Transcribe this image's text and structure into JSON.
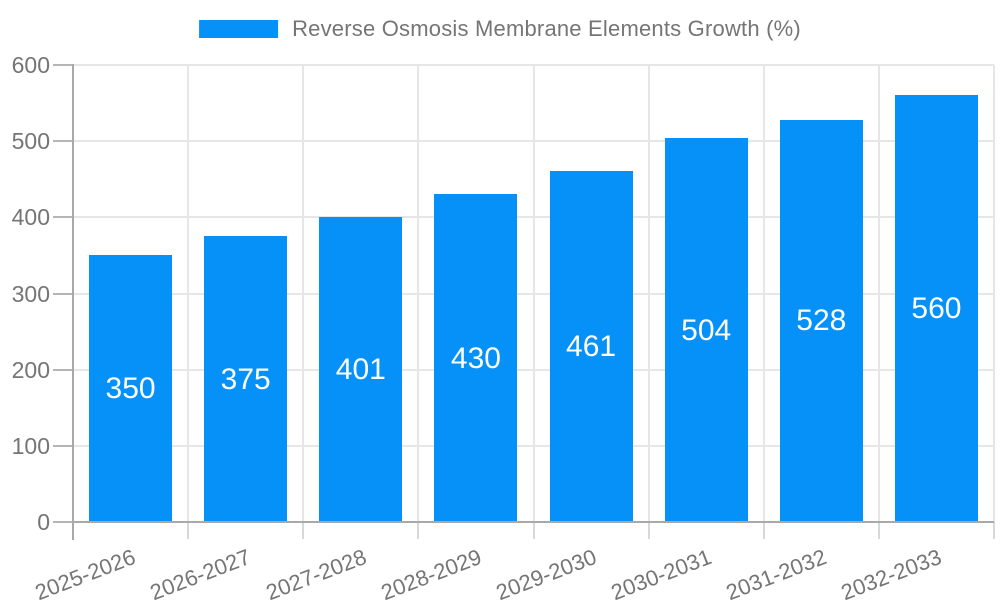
{
  "chart_data": {
    "type": "bar",
    "title": "Reverse Osmosis Membrane Elements Growth (%)",
    "legend_position": "top",
    "categories": [
      "2025-2026",
      "2026-2027",
      "2027-2028",
      "2028-2029",
      "2029-2030",
      "2030-2031",
      "2031-2032",
      "2032-2033"
    ],
    "series": [
      {
        "name": "Reverse Osmosis Membrane Elements Growth (%)",
        "values": [
          350,
          375,
          401,
          430,
          461,
          504,
          528,
          560
        ]
      }
    ],
    "bar_value_labels": [
      "350",
      "375",
      "401",
      "430",
      "461",
      "504",
      "528",
      "560"
    ],
    "xlabel": "",
    "ylabel": "",
    "ylim": [
      0,
      600
    ],
    "ytick_step": 100,
    "yticks": [
      0,
      100,
      200,
      300,
      400,
      500,
      600
    ],
    "grid": true,
    "x_label_rotation_deg": -21,
    "colors": {
      "bar": "#0691f8",
      "bar_label_text": "#ffffff",
      "legend_text": "#757575",
      "axis_text": "#757575",
      "grid_line": "#e6e6e6",
      "axis_line": "#a9a9a9",
      "y_tick_line": "#b5b5b5",
      "x_tick_line": "#d8d8d8",
      "background": "#ffffff"
    }
  }
}
